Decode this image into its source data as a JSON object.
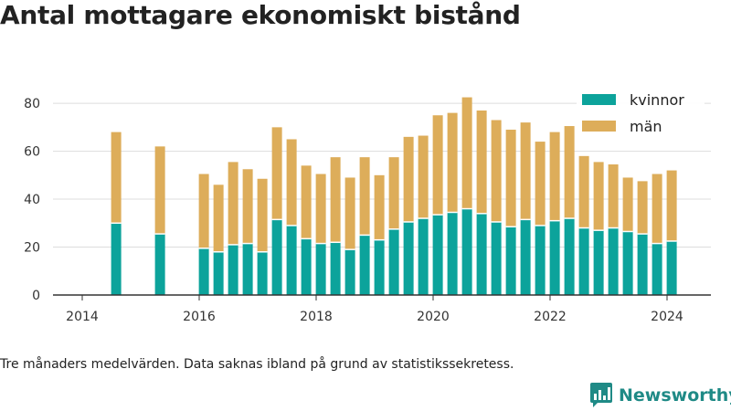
{
  "title": "Antal mottagare ekonomiskt bistånd",
  "footnote": "Tre månaders medelvärden. Data saknas ibland på grund av statistikssekretess.",
  "brand": "Newsworthy",
  "colors": {
    "kvinnor": "#0ca39b",
    "man": "#ddad5a",
    "axis": "#333333",
    "grid": "#dddddd",
    "brand": "#1f8a86"
  },
  "chart_data": {
    "type": "bar",
    "stacked": true,
    "title": "Antal mottagare ekonomiskt bistånd",
    "xlabel": "",
    "ylabel": "",
    "ylim": [
      0,
      85
    ],
    "xlim": [
      2013.5,
      2024.75
    ],
    "yticks": [
      0,
      20,
      40,
      60,
      80
    ],
    "xticks": [
      2014,
      2016,
      2018,
      2020,
      2022,
      2024
    ],
    "legend_position": "top-right",
    "grid": true,
    "x": [
      2014.58,
      2015.33,
      2016.08,
      2016.33,
      2016.58,
      2016.83,
      2017.08,
      2017.33,
      2017.58,
      2017.83,
      2018.08,
      2018.33,
      2018.58,
      2018.83,
      2019.08,
      2019.33,
      2019.58,
      2019.83,
      2020.08,
      2020.33,
      2020.58,
      2020.83,
      2021.08,
      2021.33,
      2021.58,
      2021.83,
      2022.08,
      2022.33,
      2022.58,
      2022.83,
      2023.08,
      2023.33,
      2023.58,
      2023.83,
      2024.08
    ],
    "series": [
      {
        "name": "kvinnor",
        "color": "#0ca39b",
        "values": [
          30,
          25.5,
          19.5,
          18,
          21,
          21.5,
          18,
          31.5,
          29,
          23.5,
          21.5,
          22,
          19,
          25,
          23,
          27.5,
          30.5,
          32,
          33.5,
          34.5,
          36,
          34,
          30.5,
          28.5,
          31.5,
          29,
          31,
          32,
          28,
          27,
          28,
          26.5,
          25.5,
          21.5,
          22.5
        ]
      },
      {
        "name": "män",
        "color": "#ddad5a",
        "values": [
          38,
          36.5,
          31,
          28,
          34.5,
          31,
          30.5,
          38.5,
          36,
          30.5,
          29,
          35.5,
          30,
          32.5,
          27,
          30,
          35.5,
          34.5,
          41.5,
          41.5,
          46.5,
          43,
          42.5,
          40.5,
          40.5,
          35,
          37,
          38.5,
          30,
          28.5,
          26.5,
          22.5,
          22,
          29,
          29.5
        ]
      }
    ]
  }
}
